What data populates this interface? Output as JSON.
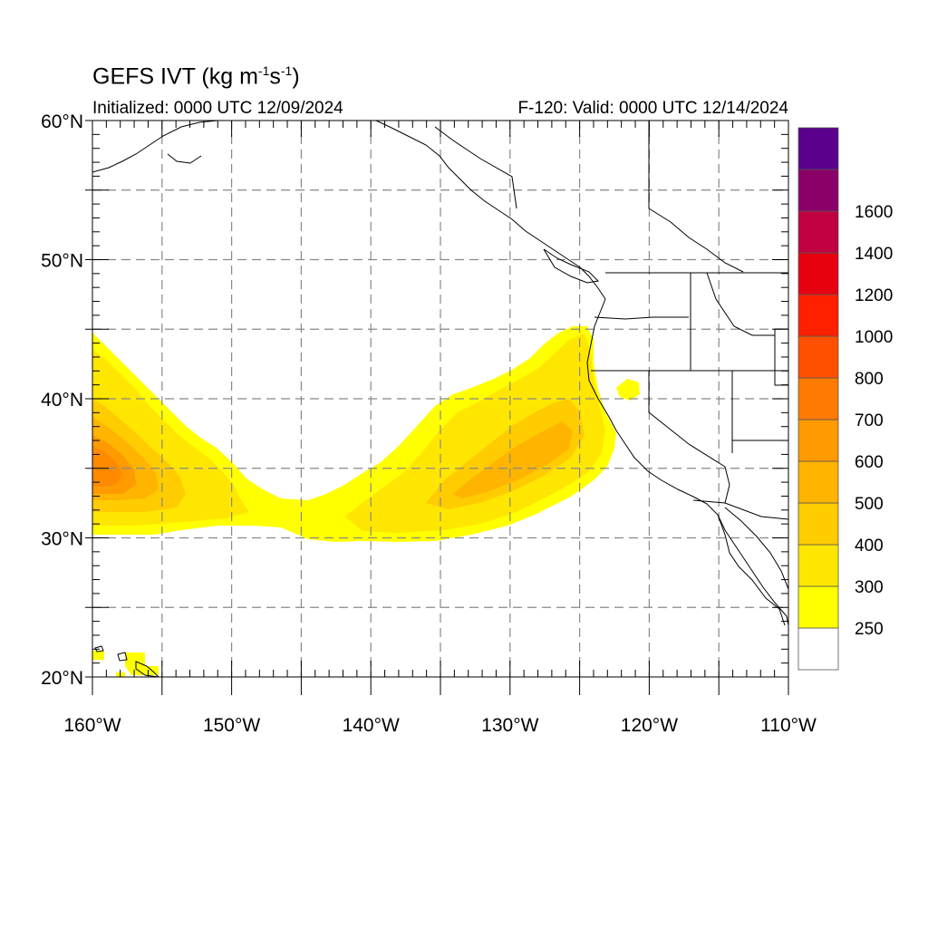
{
  "header": {
    "title_main": "GEFS IVT (kg m",
    "title_sup1": "-1",
    "title_mid": "s",
    "title_sup2": "-1",
    "title_end": ")",
    "initialized": "Initialized: 0000 UTC 12/09/2024",
    "valid": "F-120: Valid: 0000 UTC 12/14/2024"
  },
  "map": {
    "lon_range": [
      -160,
      -110
    ],
    "lat_range": [
      20,
      60
    ],
    "lon_ticks": [
      {
        "value": -160,
        "label": "160°W"
      },
      {
        "value": -150,
        "label": "150°W"
      },
      {
        "value": -140,
        "label": "140°W"
      },
      {
        "value": -130,
        "label": "130°W"
      },
      {
        "value": -120,
        "label": "120°W"
      },
      {
        "value": -110,
        "label": "110°W"
      }
    ],
    "lat_ticks": [
      {
        "value": 60,
        "label": "60°N"
      },
      {
        "value": 50,
        "label": "50°N"
      },
      {
        "value": 40,
        "label": "40°N"
      },
      {
        "value": 30,
        "label": "30°N"
      },
      {
        "value": 20,
        "label": "20°N"
      }
    ],
    "grid_lons": [
      -155,
      -150,
      -145,
      -140,
      -135,
      -130,
      -125,
      -120,
      -115
    ],
    "grid_lats": [
      25,
      30,
      35,
      40,
      45,
      50,
      55
    ],
    "grid": "dashed gray",
    "field": "IVT (integrated vapor transport)"
  },
  "colorbar": {
    "levels": [
      250,
      300,
      400,
      500,
      600,
      700,
      800,
      1000,
      1200,
      1400,
      1600
    ],
    "label_texts": [
      "250",
      "300",
      "400",
      "500",
      "600",
      "700",
      "800",
      "1000",
      "1200",
      "1400",
      "1600"
    ],
    "colors": [
      "#ffffff",
      "#ffff00",
      "#ffe600",
      "#ffcc00",
      "#ffb400",
      "#ff9a00",
      "#ff7a00",
      "#ff5000",
      "#ff2000",
      "#e60010",
      "#c00040",
      "#8a0068",
      "#5a008c"
    ]
  }
}
